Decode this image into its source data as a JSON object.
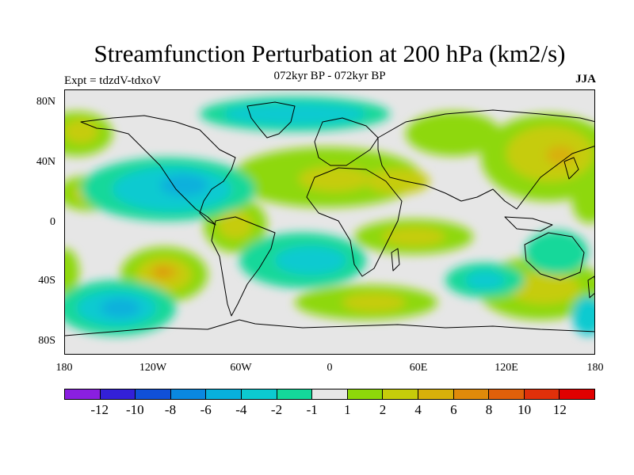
{
  "map": {
    "title": "Streamfunction Perturbation at 200 hPa (km2/s)",
    "subtitle": "072kyr BP - 072kyr BP",
    "experiment": "Expt = tdzdV-tdxoV",
    "season": "JJA",
    "lat_labels": [
      "80N",
      "40N",
      "0",
      "40S",
      "80S"
    ],
    "lon_labels": [
      "180",
      "120W",
      "60W",
      "0",
      "60E",
      "120E",
      "180"
    ],
    "background_color": "#e6e6e6",
    "colorbar": {
      "labels": [
        "-12",
        "-10",
        "-8",
        "-6",
        "-4",
        "-2",
        "-1",
        "1",
        "2",
        "4",
        "6",
        "8",
        "10",
        "12"
      ],
      "colors": [
        "#8a1fe0",
        "#3320d8",
        "#1050d8",
        "#0a88e0",
        "#08b0dc",
        "#0ccad0",
        "#14d89a",
        "#e6e6e6",
        "#8ed80a",
        "#c6cc0a",
        "#d8b00a",
        "#e08a0a",
        "#e0600a",
        "#e0300a",
        "#e00000"
      ]
    }
  }
}
